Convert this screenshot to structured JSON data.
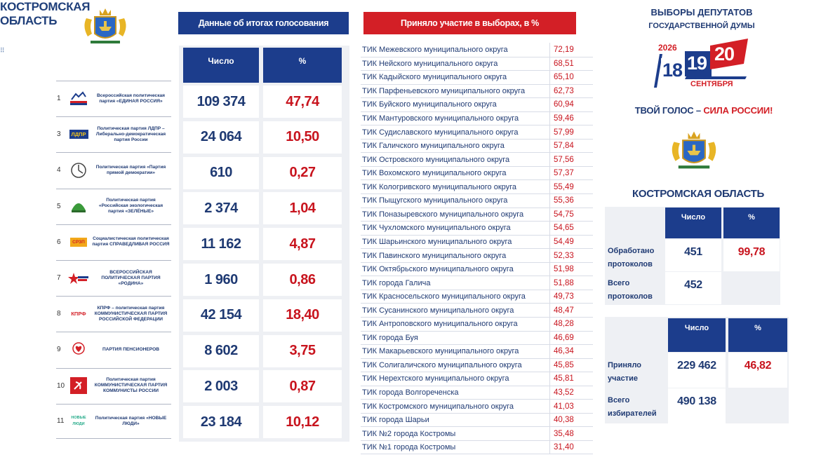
{
  "left": {
    "region_title": "КОСТРОМСКАЯ ОБЛАСТЬ",
    "parties": [
      {
        "num": "1",
        "name": "Всероссийская политическая партия «ЕДИНАЯ РОССИЯ»",
        "logo": "edinaya-rossiya-logo"
      },
      {
        "num": "3",
        "name": "Политическая партия ЛДПР – Либерально-демократическая партия России",
        "logo": "ldpr-logo",
        "logo_text": "ЛДПР"
      },
      {
        "num": "4",
        "name": "Политическая партия «Партия прямой демократии»",
        "logo": "ppd-logo"
      },
      {
        "num": "5",
        "name": "Политическая партия «Российская экологическая партия «ЗЕЛЁНЫЕ»",
        "logo": "zelenye-logo"
      },
      {
        "num": "6",
        "name": "Социалистическая политическая партия СПРАВЕДЛИВАЯ РОССИЯ",
        "logo": "sr-logo",
        "logo_text": "СРЗП"
      },
      {
        "num": "7",
        "name": "ВСЕРОССИЙСКАЯ ПОЛИТИЧЕСКАЯ ПАРТИЯ «РОДИНА»",
        "logo": "rodina-logo"
      },
      {
        "num": "8",
        "name": "КПРФ – политическая партия КОММУНИСТИЧЕСКАЯ ПАРТИЯ РОССИЙСКОЙ ФЕДЕРАЦИИ",
        "logo": "kprf-logo",
        "logo_text": "КПРФ"
      },
      {
        "num": "9",
        "name": "ПАРТИЯ ПЕНСИОНЕРОВ",
        "logo": "pensioners-logo"
      },
      {
        "num": "10",
        "name": "Политическая партия КОММУНИСТИЧЕСКАЯ ПАРТИЯ КОММУНИСТЫ РОССИИ",
        "logo": "kommunisty-logo"
      },
      {
        "num": "11",
        "name": "Политическая партия «НОВЫЕ ЛЮДИ»",
        "logo": "novye-lyudi-logo",
        "logo_text": "НОВЫЕ ЛЮДИ"
      }
    ]
  },
  "results": {
    "header": "Данные об итогах голосования",
    "col_count": "Число",
    "col_pct": "%",
    "rows": [
      {
        "count": "109 374",
        "pct": "47,74"
      },
      {
        "count": "24 064",
        "pct": "10,50"
      },
      {
        "count": "610",
        "pct": "0,27"
      },
      {
        "count": "2 374",
        "pct": "1,04"
      },
      {
        "count": "11 162",
        "pct": "4,87"
      },
      {
        "count": "1 960",
        "pct": "0,86"
      },
      {
        "count": "42 154",
        "pct": "18,40"
      },
      {
        "count": "8 602",
        "pct": "3,75"
      },
      {
        "count": "2 003",
        "pct": "0,87"
      },
      {
        "count": "23 184",
        "pct": "10,12"
      }
    ]
  },
  "turnout": {
    "header": "Приняло участие в выборах, в %",
    "rows": [
      {
        "name": "ТИК Межевского муниципального округа",
        "value": "72,19"
      },
      {
        "name": "ТИК Нейского муниципального округа",
        "value": "68,51"
      },
      {
        "name": "ТИК Кадыйского муниципального округа",
        "value": "65,10"
      },
      {
        "name": "ТИК Парфеньевского муниципального округа",
        "value": "62,73"
      },
      {
        "name": "ТИК Буйского муниципального округа",
        "value": "60,94"
      },
      {
        "name": "ТИК Мантуровского муниципального округа",
        "value": "59,46"
      },
      {
        "name": "ТИК Судиславского муниципального округа",
        "value": "57,99"
      },
      {
        "name": "ТИК Галичского муниципального округа",
        "value": "57,84"
      },
      {
        "name": "ТИК Островского муниципального округа",
        "value": "57,56"
      },
      {
        "name": "ТИК Вохомского муниципального округа",
        "value": "57,37"
      },
      {
        "name": "ТИК Кологривского муниципального округа",
        "value": "55,49"
      },
      {
        "name": "ТИК Пыщугского муниципального округа",
        "value": "55,36"
      },
      {
        "name": "ТИК Поназыревского муниципального округа",
        "value": "54,75"
      },
      {
        "name": "ТИК Чухломского муниципального округа",
        "value": "54,65"
      },
      {
        "name": "ТИК Шарьинского муниципального округа",
        "value": "54,49"
      },
      {
        "name": "ТИК Павинского муниципального округа",
        "value": "52,33"
      },
      {
        "name": "ТИК Октябрьского муниципального округа",
        "value": "51,98"
      },
      {
        "name": "ТИК города Галича",
        "value": "51,88"
      },
      {
        "name": "ТИК Красносельского муниципального округа",
        "value": "49,73"
      },
      {
        "name": "ТИК Сусанинского муниципального округа",
        "value": "48,47"
      },
      {
        "name": "ТИК Антроповского муниципального округа",
        "value": "48,28"
      },
      {
        "name": "ТИК города Буя",
        "value": "46,69"
      },
      {
        "name": "ТИК Макарьевского муниципального округа",
        "value": "46,34"
      },
      {
        "name": "ТИК Солигаличского муниципального округа",
        "value": "45,85"
      },
      {
        "name": "ТИК Нерехтского муниципального округа",
        "value": "45,81"
      },
      {
        "name": "ТИК города Волгореченска",
        "value": "43,52"
      },
      {
        "name": "ТИК Костромского муниципального округа",
        "value": "41,03"
      },
      {
        "name": "ТИК города Шарьи",
        "value": "40,38"
      },
      {
        "name": "ТИК №2 города Костромы",
        "value": "35,48"
      },
      {
        "name": "ТИК №1 города Костромы",
        "value": "31,40"
      }
    ]
  },
  "right": {
    "title_line1": "ВЫБОРЫ ДЕПУТАТОВ",
    "title_line2": "ГОСУДАРСТВЕННОЙ ДУМЫ",
    "logo_year": "2026",
    "logo_days": [
      "18",
      "19",
      "20"
    ],
    "logo_month": "СЕНТЯБРЯ",
    "slogan_part1": "ТВОЙ ГОЛОС – ",
    "slogan_part2": "СИЛА РОССИИ!",
    "region_title": "КОСТРОМСКАЯ ОБЛАСТЬ",
    "protocols": {
      "col_count": "Число",
      "col_pct": "%",
      "processed_label": "Обработано протоколов",
      "processed_count": "451",
      "processed_pct": "99,78",
      "total_label": "Всего протоколов",
      "total_count": "452"
    },
    "voters": {
      "col_count": "Число",
      "col_pct": "%",
      "took_part_label": "Приняло участие",
      "took_part_count": "229 462",
      "took_part_pct": "46,82",
      "total_label": "Всего избирателей",
      "total_count": "490 138"
    }
  },
  "colors": {
    "brand_blue": "#1c3d8c",
    "brand_red": "#d31f26",
    "text_blue": "#1f3a73"
  }
}
